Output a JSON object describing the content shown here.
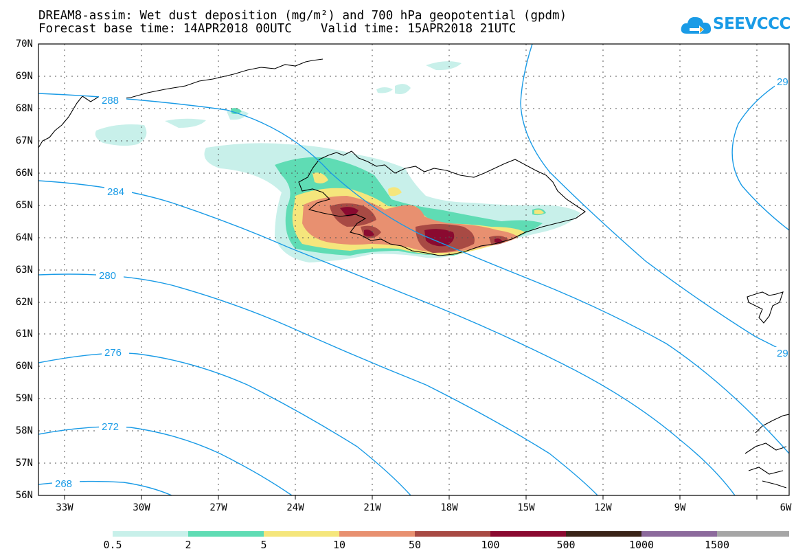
{
  "title": {
    "line1": "DREAM8-assim: Wet dust deposition (mg/m²) and 700 hPa geopotential (gpdm)",
    "line2": "Forecast base time: 14APR2018 00UTC    Valid time: 15APR2018 21UTC"
  },
  "logo": {
    "text": "SEEVCCC",
    "icon": "cloud-arrow-icon",
    "color": "#1a9be6"
  },
  "map": {
    "lat_labels": [
      "70N",
      "69N",
      "68N",
      "67N",
      "66N",
      "65N",
      "64N",
      "63N",
      "62N",
      "61N",
      "60N",
      "59N",
      "58N",
      "57N",
      "56N"
    ],
    "lon_labels": [
      "33W",
      "30W",
      "27W",
      "24W",
      "21W",
      "18W",
      "15W",
      "12W",
      "9W",
      "6W"
    ],
    "lat_range": [
      56,
      70
    ],
    "lon_range": [
      -34.5,
      -6
    ],
    "contour_labels": [
      "288",
      "284",
      "280",
      "276",
      "272",
      "268",
      "29",
      "29"
    ],
    "contour_color": "#1a9be6",
    "grid": true
  },
  "legend": {
    "labels": [
      "0.5",
      "2",
      "5",
      "10",
      "50",
      "100",
      "500",
      "1000",
      "1500"
    ],
    "colors": [
      "#c8f0ea",
      "#5fdcb4",
      "#f5e67c",
      "#e89070",
      "#a84a44",
      "#8a0a30",
      "#3a2418",
      "#8c6a9c",
      "#a6a6a6"
    ]
  }
}
